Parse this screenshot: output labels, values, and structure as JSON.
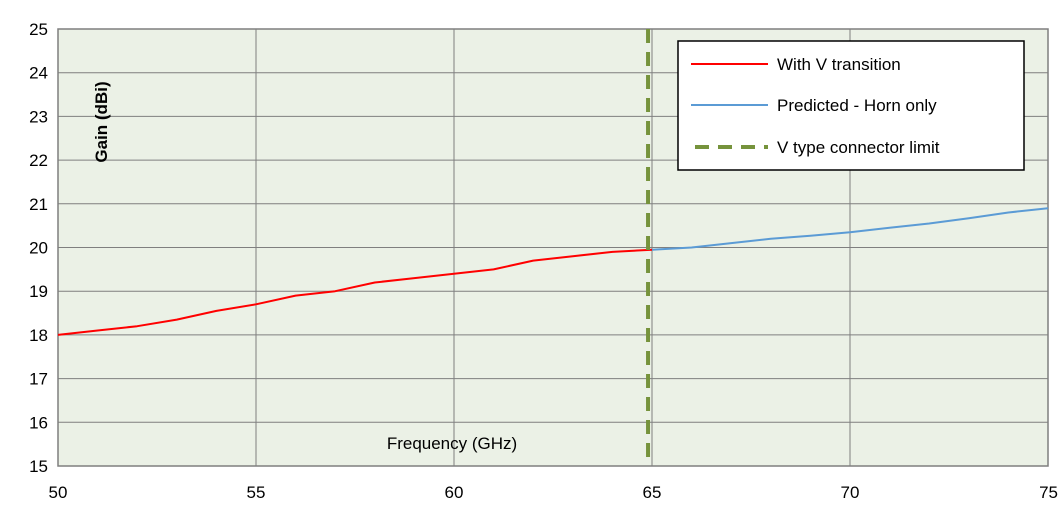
{
  "chart_data": {
    "type": "line",
    "xlabel": "Frequency (GHz)",
    "ylabel": "Gain (dBi)",
    "xlim": [
      50,
      75
    ],
    "ylim": [
      15,
      25
    ],
    "x_ticks": [
      50,
      55,
      60,
      65,
      70,
      75
    ],
    "y_ticks": [
      15,
      16,
      17,
      18,
      19,
      20,
      21,
      22,
      23,
      24,
      25
    ],
    "grid": true,
    "legend_position": "top-right",
    "plot_background": "#ebf1e6",
    "series": [
      {
        "name": "With V transition",
        "color": "#ff0000",
        "x": [
          50,
          51,
          52,
          53,
          54,
          55,
          56,
          57,
          58,
          59,
          60,
          61,
          62,
          63,
          64,
          65
        ],
        "y": [
          18.0,
          18.1,
          18.2,
          18.35,
          18.55,
          18.7,
          18.9,
          19.0,
          19.2,
          19.3,
          19.4,
          19.5,
          19.7,
          19.8,
          19.9,
          19.95
        ]
      },
      {
        "name": "Predicted - Horn only",
        "color": "#5b9bd5",
        "x": [
          65,
          66,
          67,
          68,
          69,
          70,
          71,
          72,
          73,
          74,
          75
        ],
        "y": [
          19.95,
          20.0,
          20.1,
          20.2,
          20.27,
          20.35,
          20.45,
          20.55,
          20.67,
          20.8,
          20.9
        ]
      }
    ],
    "reference_lines": [
      {
        "name": "V type connector limit",
        "orientation": "vertical",
        "x": 64.9,
        "color": "#76933c",
        "style": "dashed"
      }
    ]
  }
}
